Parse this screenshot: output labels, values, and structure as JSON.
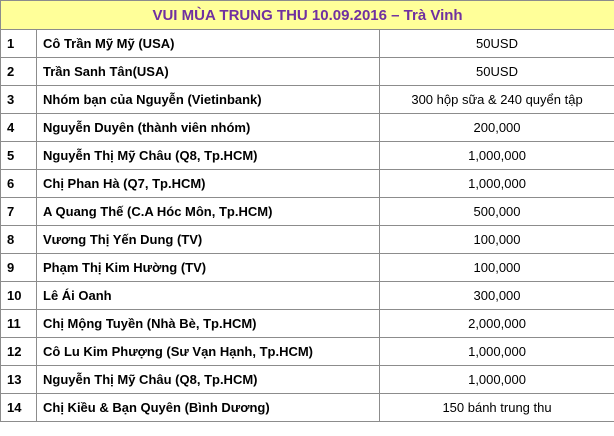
{
  "title": "VUI MÙA TRUNG THU 10.09.2016 – Trà Vinh",
  "rows": [
    {
      "no": "1",
      "name": "Cô Trần Mỹ Mỹ (USA)",
      "amount": "50USD"
    },
    {
      "no": "2",
      "name": "Trần Sanh Tân(USA)",
      "amount": "50USD"
    },
    {
      "no": "3",
      "name": "Nhóm bạn của Nguyễn (Vietinbank)",
      "amount": "300 hộp sữa & 240 quyển tập"
    },
    {
      "no": "4",
      "name": "Nguyễn Duyên (thành viên nhóm)",
      "amount": "200,000"
    },
    {
      "no": "5",
      "name": "Nguyễn Thị Mỹ Châu (Q8, Tp.HCM)",
      "amount": "1,000,000"
    },
    {
      "no": "6",
      "name": "Chị Phan Hà (Q7, Tp.HCM)",
      "amount": "1,000,000"
    },
    {
      "no": "7",
      "name": "A Quang Thế (C.A Hóc Môn, Tp.HCM)",
      "amount": "500,000"
    },
    {
      "no": "8",
      "name": "Vương Thị Yến Dung (TV)",
      "amount": "100,000"
    },
    {
      "no": "9",
      "name": "Phạm Thị Kim Hường (TV)",
      "amount": "100,000"
    },
    {
      "no": "10",
      "name": "Lê Ái Oanh",
      "amount": "300,000"
    },
    {
      "no": "11",
      "name": "Chị Mộng Tuyền (Nhà Bè, Tp.HCM)",
      "amount": "2,000,000"
    },
    {
      "no": "12",
      "name": "Cô Lu Kim Phượng (Sư Vạn Hạnh, Tp.HCM)",
      "amount": "1,000,000"
    },
    {
      "no": "13",
      "name": "Nguyễn Thị Mỹ Châu (Q8, Tp.HCM)",
      "amount": "1,000,000"
    },
    {
      "no": "14",
      "name": "Chị Kiều & Bạn Quyên (Bình Dương)",
      "amount": "150 bánh trung thu"
    }
  ]
}
